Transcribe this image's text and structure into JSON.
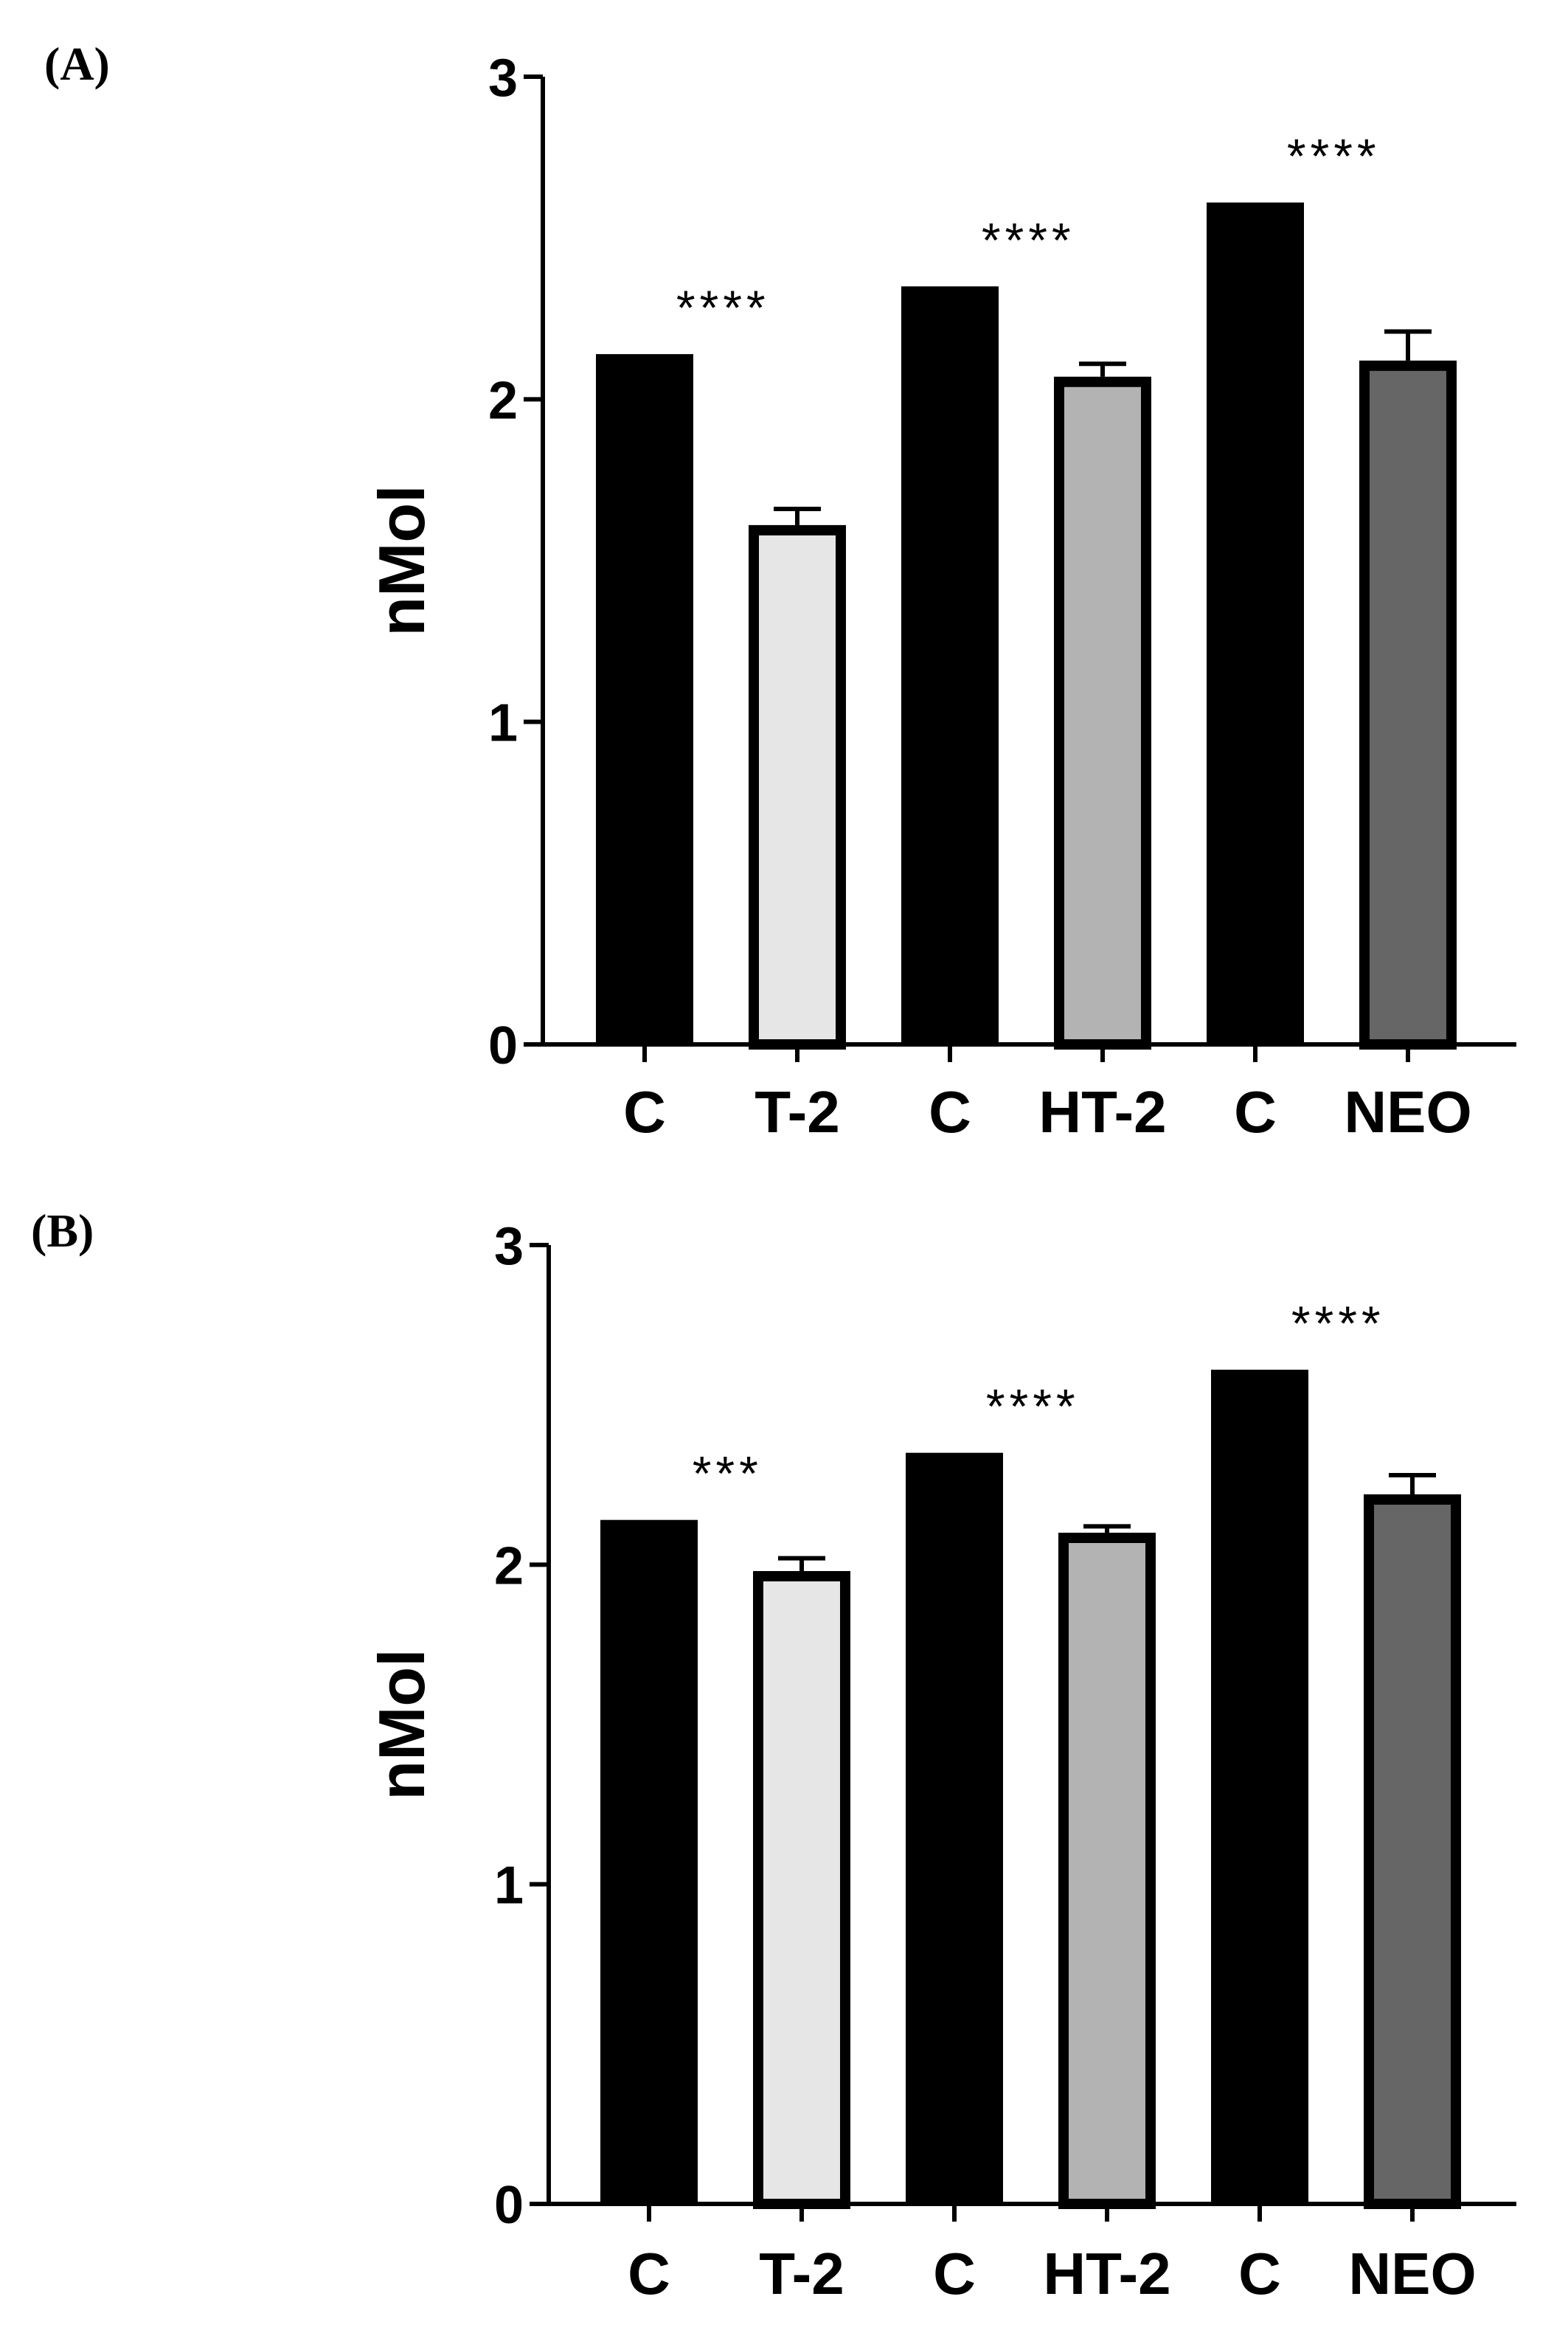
{
  "chart_data": [
    {
      "panel_label": "(A)",
      "type": "bar",
      "ylabel": "nMol",
      "ylim": [
        0,
        3
      ],
      "yticks": [
        "0",
        "1",
        "2",
        "3"
      ],
      "categories": [
        "C",
        "T-2",
        "C",
        "HT-2",
        "C",
        "NEO"
      ],
      "values": [
        2.14,
        1.61,
        2.35,
        2.07,
        2.61,
        2.12
      ],
      "errors": [
        0,
        0.05,
        0,
        0.04,
        0,
        0.09
      ],
      "fills": [
        "#000000",
        "#e6e6e6",
        "#000000",
        "#b3b3b3",
        "#000000",
        "#666666"
      ],
      "significance": [
        {
          "pair": [
            0,
            1
          ],
          "label": "****"
        },
        {
          "pair": [
            2,
            3
          ],
          "label": "****"
        },
        {
          "pair": [
            4,
            5
          ],
          "label": "****"
        }
      ]
    },
    {
      "panel_label": "(B)",
      "type": "bar",
      "ylabel": "nMol",
      "ylim": [
        0,
        3
      ],
      "yticks": [
        "0",
        "1",
        "2",
        "3"
      ],
      "categories": [
        "C",
        "T-2",
        "C",
        "HT-2",
        "C",
        "NEO"
      ],
      "values": [
        2.14,
        1.98,
        2.35,
        2.1,
        2.61,
        2.22
      ],
      "errors": [
        0,
        0.04,
        0,
        0.02,
        0,
        0.06
      ],
      "fills": [
        "#000000",
        "#e6e6e6",
        "#000000",
        "#b3b3b3",
        "#000000",
        "#666666"
      ],
      "significance": [
        {
          "pair": [
            0,
            1
          ],
          "label": "***"
        },
        {
          "pair": [
            2,
            3
          ],
          "label": "****"
        },
        {
          "pair": [
            4,
            5
          ],
          "label": "****"
        }
      ]
    }
  ]
}
